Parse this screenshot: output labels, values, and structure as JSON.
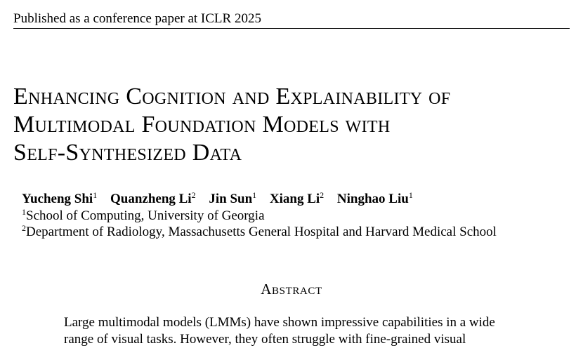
{
  "header": {
    "running_head": "Published as a conference paper at ICLR 2025"
  },
  "title": {
    "lines": [
      "Enhancing Cognition and Explainability of",
      "Multimodal Foundation Models with",
      "Self-Synthesized Data"
    ]
  },
  "authors": [
    {
      "name": "Yucheng Shi",
      "affil": "1"
    },
    {
      "name": "Quanzheng Li",
      "affil": "2"
    },
    {
      "name": "Jin Sun",
      "affil": "1"
    },
    {
      "name": "Xiang Li",
      "affil": "2"
    },
    {
      "name": "Ninghao Liu",
      "affil": "1"
    }
  ],
  "affiliations": [
    {
      "mark": "1",
      "text": "School of Computing, University of Georgia"
    },
    {
      "mark": "2",
      "text": "Department of Radiology, Massachusetts General Hospital and Harvard Medical School"
    }
  ],
  "abstract": {
    "heading": "Abstract",
    "lines": [
      "Large multimodal models (LMMs) have shown impressive capabilities in a wide",
      "range of visual tasks. However, they often struggle with fine-grained visual"
    ]
  }
}
